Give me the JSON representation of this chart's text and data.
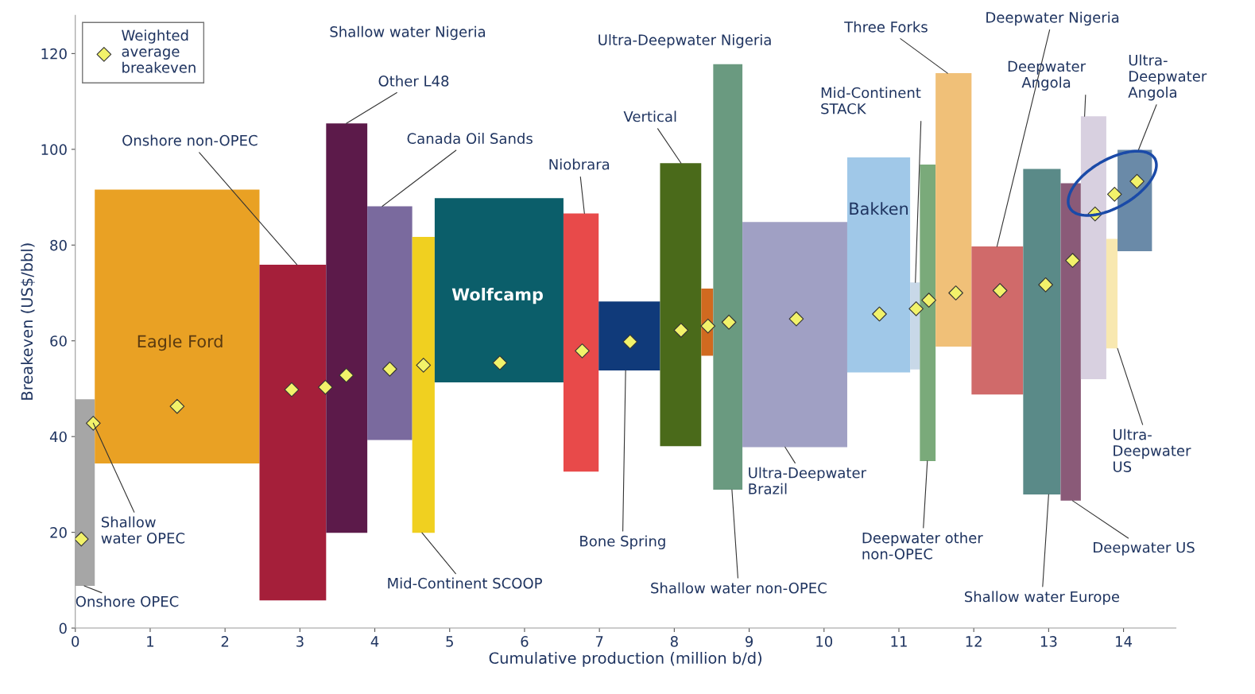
{
  "chart_data": {
    "type": "histogram",
    "xlabel": "Cumulative production (million b/d)",
    "ylabel": "Breakeven (US$/bbl)",
    "xlim": [
      0,
      14.7
    ],
    "ylim": [
      0,
      128
    ],
    "xticks": [
      0,
      1,
      2,
      3,
      4,
      5,
      6,
      7,
      8,
      9,
      10,
      11,
      12,
      13,
      14
    ],
    "yticks": [
      0,
      20,
      40,
      60,
      80,
      100,
      120
    ],
    "grid": false,
    "legend": "top left",
    "series": [
      {
        "bins": [
          0,
          0.26,
          2.46,
          3.35,
          3.9,
          4.5,
          4.8,
          6.52,
          6.99,
          7.81,
          8.36,
          8.52,
          8.91,
          10.31,
          11.15,
          11.28,
          11.49,
          11.97,
          12.66,
          13.16,
          13.43,
          13.77,
          13.92,
          14.38
        ],
        "base": [
          8.8,
          34.4,
          5.8,
          19.9,
          39.3,
          19.9,
          51.3,
          32.7,
          53.8,
          38,
          56.9,
          28.9,
          37.8,
          53.4,
          54,
          34.9,
          58.8,
          48.8,
          27.9,
          26.6,
          52,
          58.4,
          78.7
        ],
        "values": [
          39.0,
          57.2,
          70.1,
          85.5,
          48.8,
          61.8,
          38.5,
          53.9,
          14.4,
          59.1,
          14.0,
          88.9,
          47.0,
          44.9,
          18.2,
          61.9,
          57.1,
          30.9,
          68.0,
          66.3,
          54.9,
          22.9,
          21.2
        ],
        "colors": [
          "#a6a6a6",
          "#e9a124",
          "#a51f3a",
          "#5c1a4a",
          "#7a6a9e",
          "#f0d020",
          "#0b5e6a",
          "#e84a4a",
          "#103a7a",
          "#4a6a1a",
          "#d06a20",
          "#6a9a80",
          "#a0a0c4",
          "#a0c8e8",
          "#c8d8e8",
          "#7aaa7a",
          "#f0c078",
          "#d06a6a",
          "#5a8a88",
          "#8a5a78",
          "#d8d0e0",
          "#f8e8b0",
          "#6a8aa8"
        ]
      },
      {
        "name": "Weighted\naverage\nbreakeven",
        "type": "scatter",
        "marker": "diamond",
        "color": "#f2f26a",
        "x": [
          0.08,
          0.24,
          1.36,
          2.89,
          3.34,
          3.62,
          4.2,
          4.65,
          5.67,
          6.77,
          7.41,
          8.09,
          8.45,
          8.73,
          9.63,
          10.74,
          11.23,
          11.4,
          11.76,
          12.35,
          12.96,
          13.32,
          13.62,
          13.88,
          14.18
        ],
        "values": [
          18.6,
          42.8,
          46.3,
          49.8,
          50.3,
          52.8,
          54.1,
          54.9,
          55.4,
          57.9,
          59.8,
          62.2,
          63.1,
          63.9,
          64.6,
          65.6,
          66.7,
          68.5,
          70,
          70.5,
          71.7,
          76.8,
          86.5,
          90.6,
          93.3
        ]
      }
    ],
    "annotations": [
      {
        "text": "Onshore OPEC",
        "x": 0.12,
        "y": 8.8
      },
      {
        "text": "Shallow\nwater OPEC",
        "x": 0.24,
        "y": 42.8
      },
      "Eagle Ford",
      {
        "text": "Onshore non-OPEC",
        "x": 2.96,
        "y": 75.9
      },
      "Shallow water Nigeria",
      {
        "text": "Other L48",
        "x": 3.62,
        "y": 105.4
      },
      {
        "text": "Canada Oil Sands",
        "x": 4.1,
        "y": 88.1
      },
      {
        "text": "Mid-Continent SCOOP",
        "x": 4.63,
        "y": 19.9
      },
      "Wolfcamp",
      {
        "text": "Niobrara",
        "x": 6.8,
        "y": 86.6
      },
      {
        "text": "Bone Spring",
        "x": 7.35,
        "y": 53.8
      },
      {
        "text": "Vertical",
        "x": 8.09,
        "y": 97.1
      },
      "Ultra-Deepwater Nigeria",
      {
        "text": "Shallow water non-OPEC",
        "x": 8.77,
        "y": 28.9
      },
      {
        "text": "Ultra-Deepwater\nBrazil",
        "x": 9.48,
        "y": 37.8
      },
      "Bakken",
      {
        "text": "Mid-Continent\nSTACK",
        "x": 11.22,
        "y": 72.2
      },
      {
        "text": "Deepwater other\nnon-OPEC",
        "x": 11.38,
        "y": 34.9
      },
      {
        "text": "Three Forks",
        "x": 11.65,
        "y": 115.9
      },
      {
        "text": "Deepwater Nigeria",
        "x": 12.31,
        "y": 79.7
      },
      {
        "text": "Shallow water Europe",
        "x": 13.0,
        "y": 27.9
      },
      {
        "text": "Deepwater US",
        "x": 13.32,
        "y": 26.6
      },
      {
        "text": "Deepwater\nAngola",
        "x": 13.48,
        "y": 106.9
      },
      {
        "text": "Ultra-\nDeepwater\nUS",
        "x": 13.92,
        "y": 58.4
      },
      {
        "text": "Ultra-\nDeepwater\nAngola",
        "x": 14.2,
        "y": 99.9
      }
    ]
  }
}
